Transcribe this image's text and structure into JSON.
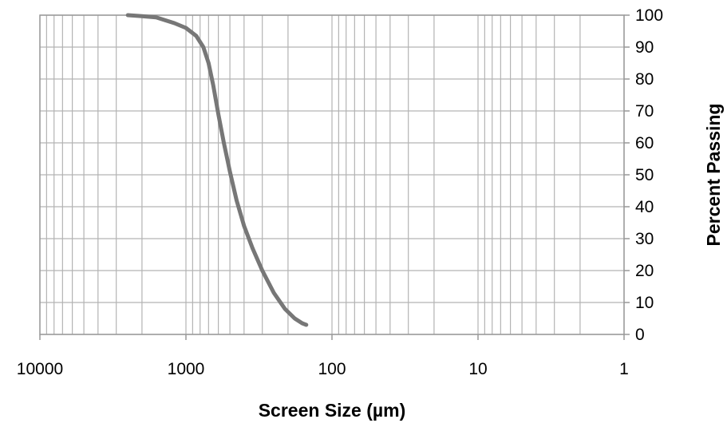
{
  "chart_data": {
    "type": "line",
    "xlabel": "Screen Size (µm)",
    "ylabel": "Percent Passing",
    "x_scale": "log",
    "x_reversed": true,
    "xlim": [
      10000,
      1
    ],
    "ylim": [
      0,
      100
    ],
    "x_ticks": [
      "10000",
      "1000",
      "100",
      "10",
      "1"
    ],
    "y_ticks": [
      "0",
      "10",
      "20",
      "30",
      "40",
      "50",
      "60",
      "70",
      "80",
      "90",
      "100"
    ],
    "y_axis_side": "right",
    "grid": true,
    "series": [
      {
        "color": "#777777",
        "x": [
          2500,
          2000,
          1600,
          1200,
          1000,
          850,
          760,
          700,
          650,
          600,
          550,
          500,
          450,
          400,
          350,
          300,
          250,
          210,
          180,
          160,
          150
        ],
        "y": [
          100,
          99.7,
          99.3,
          97.5,
          96.0,
          93.5,
          90.0,
          85.0,
          78.0,
          69.0,
          60.0,
          51.0,
          42.0,
          34.0,
          27.0,
          20.0,
          13.0,
          8.0,
          5.0,
          3.5,
          3.0
        ]
      }
    ]
  }
}
